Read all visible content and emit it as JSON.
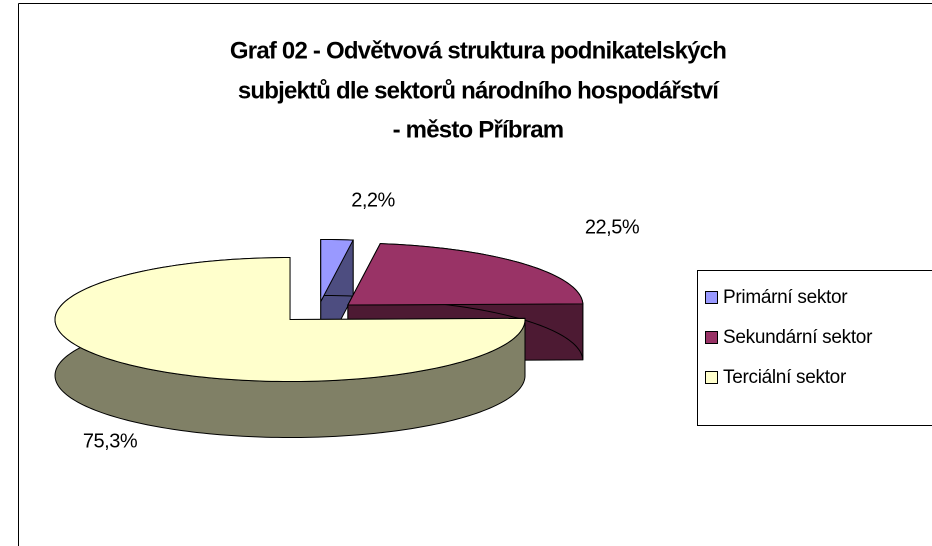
{
  "chart_data": {
    "type": "pie",
    "title": [
      "Graf 02 - Odvětvová struktura podnikatelských",
      "subjektů dle sektorů národního hospodářství",
      "- město Příbram"
    ],
    "categories": [
      "Primární sektor",
      "Sekundární sektor",
      "Terciální sektor"
    ],
    "values": [
      2.2,
      22.5,
      75.3
    ],
    "value_labels": [
      "2,2%",
      "22,5%",
      "75,3%"
    ],
    "colors": [
      "#9999ff",
      "#993366",
      "#ffffcc"
    ],
    "legend": "right"
  }
}
